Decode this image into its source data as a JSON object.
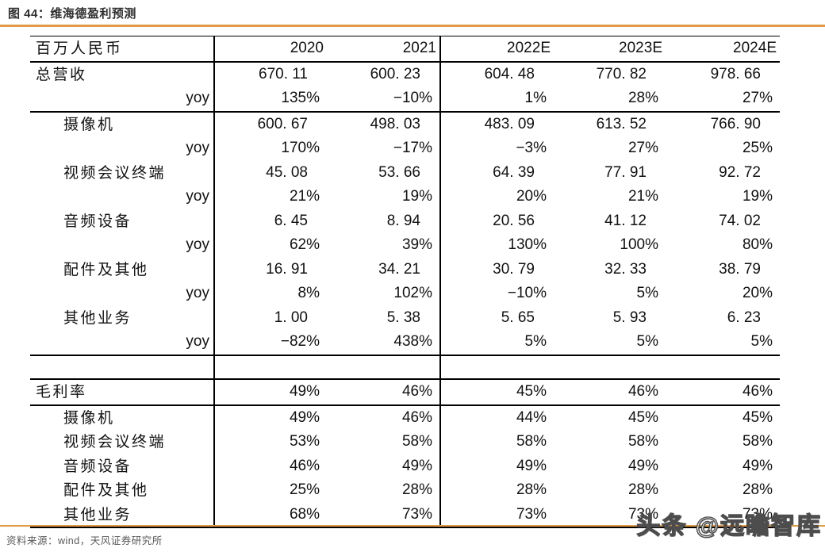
{
  "figure": {
    "title_prefix": "图 44：",
    "title": "维海德盈利预测",
    "source": "资料来源：wind，天风证券研究所",
    "watermark": "头条 @远瞻智库",
    "accent_color": "#E39A46"
  },
  "table": {
    "unit_label": "百万人民币",
    "columns": [
      "2020",
      "2021",
      "2022E",
      "2023E",
      "2024E"
    ],
    "rows": [
      {
        "label": "总营收",
        "indent": 0,
        "kind": "num",
        "rule": false,
        "values": [
          "670. 11",
          "600. 23",
          "604. 48",
          "770. 82",
          "978. 66"
        ]
      },
      {
        "label": "yoy",
        "indent": "yoy",
        "kind": "pct",
        "rule": true,
        "values": [
          "135%",
          "−10%",
          "1%",
          "28%",
          "27%"
        ]
      },
      {
        "label": "摄像机",
        "indent": 1,
        "kind": "num",
        "rule": false,
        "values": [
          "600. 67",
          "498. 03",
          "483. 09",
          "613. 52",
          "766. 90"
        ]
      },
      {
        "label": "yoy",
        "indent": "yoy",
        "kind": "pct",
        "rule": false,
        "values": [
          "170%",
          "−17%",
          "−3%",
          "27%",
          "25%"
        ]
      },
      {
        "label": "视频会议终端",
        "indent": 1,
        "kind": "num",
        "rule": false,
        "values": [
          "45. 08",
          "53. 66",
          "64. 39",
          "77. 91",
          "92. 72"
        ]
      },
      {
        "label": "yoy",
        "indent": "yoy",
        "kind": "pct",
        "rule": false,
        "values": [
          "21%",
          "19%",
          "20%",
          "21%",
          "19%"
        ]
      },
      {
        "label": "音频设备",
        "indent": 1,
        "kind": "num",
        "rule": false,
        "values": [
          "6. 45",
          "8. 94",
          "20. 56",
          "41. 12",
          "74. 02"
        ]
      },
      {
        "label": "yoy",
        "indent": "yoy",
        "kind": "pct",
        "rule": false,
        "values": [
          "62%",
          "39%",
          "130%",
          "100%",
          "80%"
        ]
      },
      {
        "label": "配件及其他",
        "indent": 1,
        "kind": "num",
        "rule": false,
        "values": [
          "16. 91",
          "34. 21",
          "30. 79",
          "32. 33",
          "38. 79"
        ]
      },
      {
        "label": "yoy",
        "indent": "yoy",
        "kind": "pct",
        "rule": false,
        "values": [
          "8%",
          "102%",
          "−10%",
          "5%",
          "20%"
        ]
      },
      {
        "label": "其他业务",
        "indent": 1,
        "kind": "num",
        "rule": false,
        "values": [
          "1. 00",
          "5. 38",
          "5. 65",
          "5. 93",
          "6. 23"
        ]
      },
      {
        "label": "yoy",
        "indent": "yoy",
        "kind": "pct",
        "rule": true,
        "values": [
          "−82%",
          "438%",
          "5%",
          "5%",
          "5%"
        ]
      },
      {
        "label": "",
        "indent": 0,
        "kind": "empty",
        "rule": true,
        "values": [
          "",
          "",
          "",
          "",
          ""
        ]
      },
      {
        "label": "毛利率",
        "indent": 0,
        "kind": "pct",
        "rule": true,
        "values": [
          "49%",
          "46%",
          "45%",
          "46%",
          "46%"
        ]
      },
      {
        "label": "摄像机",
        "indent": 1,
        "kind": "pct",
        "rule": false,
        "values": [
          "49%",
          "46%",
          "44%",
          "45%",
          "45%"
        ]
      },
      {
        "label": "视频会议终端",
        "indent": 1,
        "kind": "pct",
        "rule": false,
        "values": [
          "53%",
          "58%",
          "58%",
          "58%",
          "58%"
        ]
      },
      {
        "label": "音频设备",
        "indent": 1,
        "kind": "pct",
        "rule": false,
        "values": [
          "46%",
          "49%",
          "49%",
          "49%",
          "49%"
        ]
      },
      {
        "label": "配件及其他",
        "indent": 1,
        "kind": "pct",
        "rule": false,
        "values": [
          "25%",
          "28%",
          "28%",
          "28%",
          "28%"
        ]
      },
      {
        "label": "其他业务",
        "indent": 1,
        "kind": "pct",
        "rule": false,
        "values": [
          "68%",
          "73%",
          "73%",
          "73%",
          "73%"
        ]
      }
    ]
  }
}
